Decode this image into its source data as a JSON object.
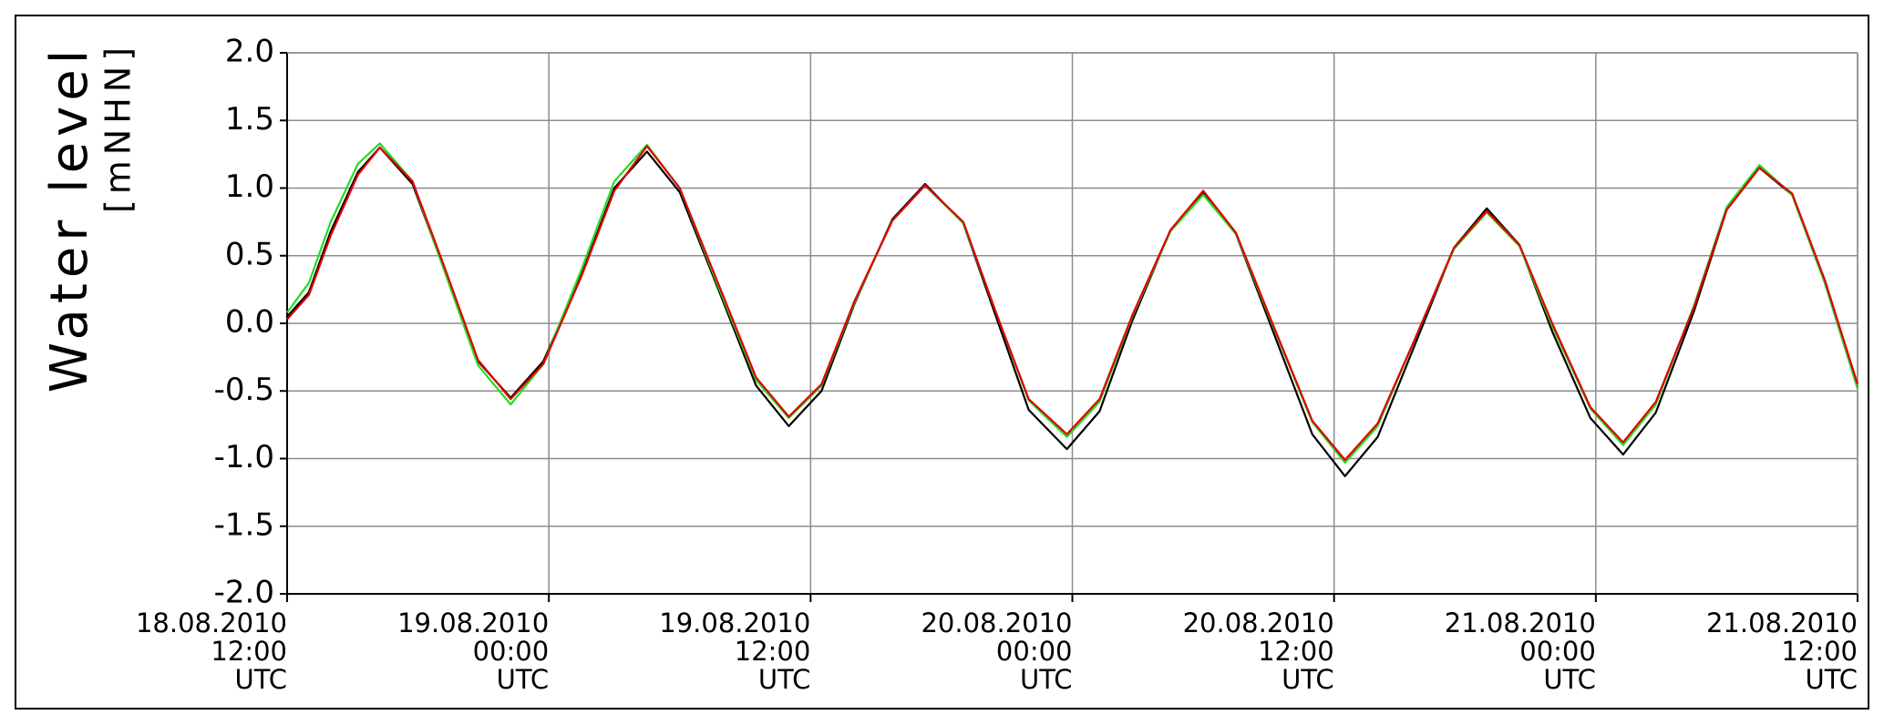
{
  "chart_data": {
    "type": "line",
    "ylabel": "Water level",
    "ylabel_unit": "[mNHN]",
    "x": [
      "2010-08-18T12:00",
      "2010-08-18T13:00",
      "2010-08-18T14:00",
      "2010-08-18T15:15",
      "2010-08-18T16:15",
      "2010-08-18T17:45",
      "2010-08-18T19:15",
      "2010-08-18T20:45",
      "2010-08-18T22:15",
      "2010-08-18T23:45",
      "2010-08-19T01:30",
      "2010-08-19T03:00",
      "2010-08-19T04:30",
      "2010-08-19T06:00",
      "2010-08-19T07:45",
      "2010-08-19T09:30",
      "2010-08-19T11:00",
      "2010-08-19T12:30",
      "2010-08-19T14:00",
      "2010-08-19T15:45",
      "2010-08-19T17:15",
      "2010-08-19T19:00",
      "2010-08-19T20:30",
      "2010-08-19T22:00",
      "2010-08-19T23:45",
      "2010-08-20T01:15",
      "2010-08-20T02:45",
      "2010-08-20T04:30",
      "2010-08-20T06:00",
      "2010-08-20T07:30",
      "2010-08-20T09:15",
      "2010-08-20T11:00",
      "2010-08-20T12:30",
      "2010-08-20T14:00",
      "2010-08-20T15:45",
      "2010-08-20T17:30",
      "2010-08-20T19:00",
      "2010-08-20T20:30",
      "2010-08-20T22:00",
      "2010-08-20T23:45",
      "2010-08-21T01:15",
      "2010-08-21T02:45",
      "2010-08-21T04:30",
      "2010-08-21T06:00",
      "2010-08-21T07:30",
      "2010-08-21T09:00",
      "2010-08-21T10:30",
      "2010-08-21T12:00"
    ],
    "series": [
      {
        "color": "#000000",
        "values": [
          0.05,
          0.23,
          0.68,
          1.12,
          1.3,
          1.03,
          0.38,
          -0.28,
          -0.55,
          -0.28,
          0.36,
          1.0,
          1.27,
          0.97,
          0.26,
          -0.46,
          -0.76,
          -0.5,
          0.14,
          0.77,
          1.03,
          0.74,
          0.05,
          -0.64,
          -0.93,
          -0.65,
          0.02,
          0.69,
          0.97,
          0.66,
          -0.08,
          -0.82,
          -1.13,
          -0.84,
          -0.14,
          0.56,
          0.85,
          0.58,
          -0.06,
          -0.7,
          -0.97,
          -0.66,
          0.09,
          0.84,
          1.15,
          0.95,
          0.3,
          -0.48
        ]
      },
      {
        "color": "#22dd22",
        "values": [
          0.08,
          0.3,
          0.75,
          1.18,
          1.33,
          1.05,
          0.37,
          -0.31,
          -0.6,
          -0.3,
          0.4,
          1.05,
          1.32,
          1.0,
          0.28,
          -0.42,
          -0.7,
          -0.46,
          0.15,
          0.76,
          1.02,
          0.74,
          0.08,
          -0.57,
          -0.84,
          -0.58,
          0.05,
          0.68,
          0.95,
          0.66,
          -0.04,
          -0.73,
          -1.03,
          -0.76,
          -0.1,
          0.55,
          0.82,
          0.57,
          -0.02,
          -0.63,
          -0.9,
          -0.6,
          0.13,
          0.86,
          1.17,
          0.95,
          0.3,
          -0.48
        ]
      },
      {
        "color": "#e00000",
        "values": [
          0.03,
          0.21,
          0.65,
          1.1,
          1.3,
          1.05,
          0.4,
          -0.27,
          -0.56,
          -0.3,
          0.35,
          0.98,
          1.31,
          1.0,
          0.3,
          -0.4,
          -0.69,
          -0.45,
          0.16,
          0.76,
          1.02,
          0.75,
          0.08,
          -0.56,
          -0.82,
          -0.56,
          0.06,
          0.69,
          0.98,
          0.67,
          -0.03,
          -0.72,
          -1.01,
          -0.74,
          -0.1,
          0.56,
          0.83,
          0.58,
          0.0,
          -0.62,
          -0.88,
          -0.58,
          0.12,
          0.84,
          1.15,
          0.96,
          0.32,
          -0.45
        ]
      }
    ],
    "xlim": [
      "2010-08-18T12:00",
      "2010-08-21T12:00"
    ],
    "xticks": [
      {
        "value": "2010-08-18T12:00",
        "label": [
          "18.08.2010",
          "12:00",
          "UTC"
        ]
      },
      {
        "value": "2010-08-19T00:00",
        "label": [
          "19.08.2010",
          "00:00",
          "UTC"
        ]
      },
      {
        "value": "2010-08-19T12:00",
        "label": [
          "19.08.2010",
          "12:00",
          "UTC"
        ]
      },
      {
        "value": "2010-08-20T00:00",
        "label": [
          "20.08.2010",
          "00:00",
          "UTC"
        ]
      },
      {
        "value": "2010-08-20T12:00",
        "label": [
          "20.08.2010",
          "12:00",
          "UTC"
        ]
      },
      {
        "value": "2010-08-21T00:00",
        "label": [
          "21.08.2010",
          "00:00",
          "UTC"
        ]
      },
      {
        "value": "2010-08-21T12:00",
        "label": [
          "21.08.2010",
          "12:00",
          "UTC"
        ]
      }
    ],
    "ylim": [
      -2,
      2
    ],
    "yticks": [
      {
        "value": 2,
        "label": "2.0"
      },
      {
        "value": 1.5,
        "label": "1.5"
      },
      {
        "value": 1,
        "label": "1.0"
      },
      {
        "value": 0.5,
        "label": "0.5"
      },
      {
        "value": 0,
        "label": "0.0"
      },
      {
        "value": -0.5,
        "label": "-0.5"
      },
      {
        "value": -1,
        "label": "-1.0"
      },
      {
        "value": -1.5,
        "label": "-1.5"
      },
      {
        "value": -2,
        "label": "-2.0"
      }
    ],
    "grid": true
  }
}
